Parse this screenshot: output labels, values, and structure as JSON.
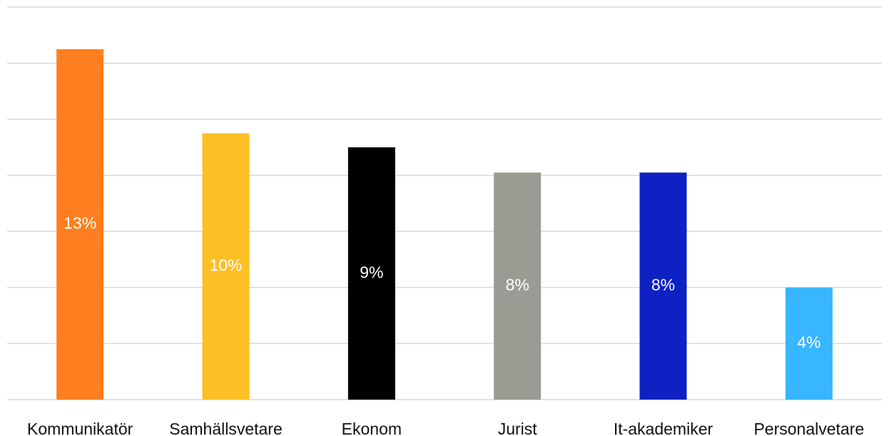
{
  "chart_data": {
    "type": "bar",
    "categories": [
      "Kommunikatör",
      "Samhällsvetare",
      "Ekonom",
      "Jurist",
      "It-akademiker",
      "Personalvetare"
    ],
    "values": [
      12.5,
      9.5,
      9,
      8.1,
      8.1,
      4
    ],
    "data_labels": [
      "13%",
      "10%",
      "9%",
      "8%",
      "8%",
      "4%"
    ],
    "colors": [
      "#ff7f20",
      "#fdbf26",
      "#000000",
      "#9c9b93",
      "#0e22c4",
      "#38b6ff"
    ],
    "label_colors": [
      "#ffffff",
      "#ffffff",
      "#ffffff",
      "#ffffff",
      "#ffffff",
      "#ffffff"
    ],
    "title": "",
    "xlabel": "",
    "ylabel": "",
    "ylim": [
      0,
      14
    ],
    "grid_step": 2,
    "grid": true,
    "legend": "none"
  }
}
